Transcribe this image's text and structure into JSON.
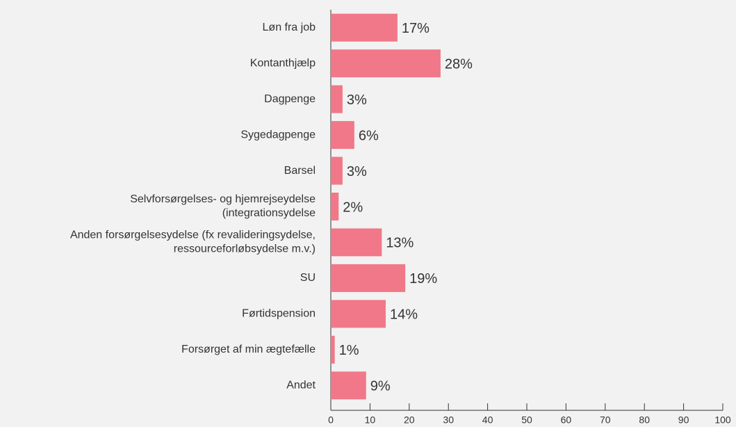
{
  "chart_data": {
    "type": "bar",
    "orientation": "horizontal",
    "categories": [
      [
        "Løn fra job"
      ],
      [
        "Kontanthjælp"
      ],
      [
        "Dagpenge"
      ],
      [
        "Sygedagpenge"
      ],
      [
        "Barsel"
      ],
      [
        "Selvforsørgelses- og hjemrejseydelse",
        "(integrationsydelse"
      ],
      [
        "Anden forsørgelsesydelse (fx revalideringsydelse,",
        "ressourceforløbsydelse m.v.)"
      ],
      [
        "SU"
      ],
      [
        "Førtidspension"
      ],
      [
        "Forsørget af min ægtefælle"
      ],
      [
        "Andet"
      ]
    ],
    "values": [
      17,
      28,
      3,
      6,
      3,
      2,
      13,
      19,
      14,
      1,
      9
    ],
    "value_labels": [
      "17%",
      "28%",
      "3%",
      "6%",
      "3%",
      "2%",
      "13%",
      "19%",
      "14%",
      "1%",
      "9%"
    ],
    "color": "#f07888",
    "xlim": [
      0,
      100
    ],
    "xticks": [
      0,
      10,
      20,
      30,
      40,
      50,
      60,
      70,
      80,
      90,
      100
    ]
  }
}
